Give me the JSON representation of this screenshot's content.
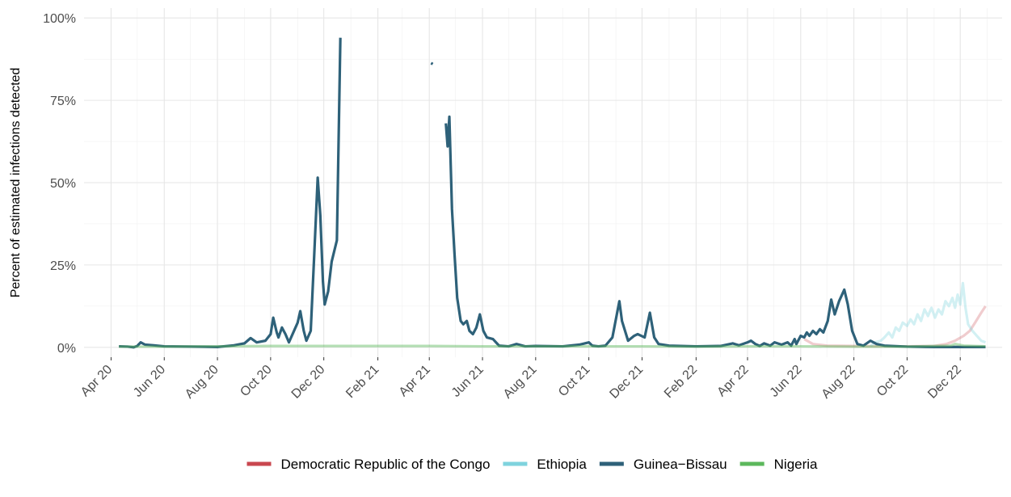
{
  "chart_data": {
    "type": "line",
    "title": "",
    "xlabel": "",
    "ylabel": "Percent of estimated infections detected",
    "y_tick_labels": [
      "0%",
      "25%",
      "50%",
      "75%",
      "100%"
    ],
    "y_ticks": [
      0,
      25,
      50,
      75,
      100
    ],
    "ylim": [
      -3,
      103
    ],
    "xlim": [
      "2020-03-01",
      "2023-01-18"
    ],
    "x_ticks": [
      "2020-04-01",
      "2020-06-01",
      "2020-08-01",
      "2020-10-01",
      "2020-12-01",
      "2021-02-01",
      "2021-04-01",
      "2021-06-01",
      "2021-08-01",
      "2021-10-01",
      "2021-12-01",
      "2022-02-01",
      "2022-04-01",
      "2022-06-01",
      "2022-08-01",
      "2022-10-01",
      "2022-12-01"
    ],
    "x_tick_labels": [
      "Apr 20",
      "Jun 20",
      "Aug 20",
      "Oct 20",
      "Dec 20",
      "Feb 21",
      "Apr 21",
      "Jun 21",
      "Aug 21",
      "Oct 21",
      "Dec 21",
      "Feb 22",
      "Apr 22",
      "Jun 22",
      "Aug 22",
      "Oct 22",
      "Dec 22"
    ],
    "grid": true,
    "legend_position": "bottom",
    "series": [
      {
        "name": "Democratic Republic of the Congo",
        "color": "#c9474f",
        "opacity": 0.28,
        "points": [
          [
            "2022-06-05",
            2.5
          ],
          [
            "2022-06-15",
            1.0
          ],
          [
            "2022-07-01",
            0.5
          ],
          [
            "2022-08-01",
            0.4
          ],
          [
            "2022-09-01",
            0.3
          ],
          [
            "2022-10-01",
            0.3
          ],
          [
            "2022-11-01",
            0.4
          ],
          [
            "2022-11-15",
            1.0
          ],
          [
            "2022-11-25",
            2.0
          ],
          [
            "2022-12-05",
            3.5
          ],
          [
            "2022-12-12",
            5.0
          ],
          [
            "2022-12-18",
            7.5
          ],
          [
            "2022-12-25",
            10.5
          ],
          [
            "2022-12-30",
            12.5
          ]
        ]
      },
      {
        "name": "Ethiopia",
        "color": "#7fd3de",
        "opacity": 0.35,
        "points": [
          [
            "2022-08-20",
            0.3
          ],
          [
            "2022-08-25",
            1.5
          ],
          [
            "2022-09-01",
            2.0
          ],
          [
            "2022-09-05",
            3.0
          ],
          [
            "2022-09-10",
            4.5
          ],
          [
            "2022-09-14",
            3.0
          ],
          [
            "2022-09-18",
            6.0
          ],
          [
            "2022-09-22",
            5.0
          ],
          [
            "2022-09-26",
            7.5
          ],
          [
            "2022-10-01",
            6.5
          ],
          [
            "2022-10-05",
            8.5
          ],
          [
            "2022-10-09",
            7.0
          ],
          [
            "2022-10-13",
            10.0
          ],
          [
            "2022-10-17",
            8.0
          ],
          [
            "2022-10-21",
            11.5
          ],
          [
            "2022-10-25",
            9.5
          ],
          [
            "2022-10-29",
            12.0
          ],
          [
            "2022-11-02",
            9.0
          ],
          [
            "2022-11-06",
            11.5
          ],
          [
            "2022-11-10",
            10.0
          ],
          [
            "2022-11-14",
            14.0
          ],
          [
            "2022-11-18",
            12.5
          ],
          [
            "2022-11-22",
            15.0
          ],
          [
            "2022-11-25",
            12.0
          ],
          [
            "2022-11-28",
            16.0
          ],
          [
            "2022-12-01",
            13.0
          ],
          [
            "2022-12-04",
            19.5
          ],
          [
            "2022-12-07",
            12.0
          ],
          [
            "2022-12-10",
            7.0
          ],
          [
            "2022-12-15",
            5.0
          ],
          [
            "2022-12-20",
            3.5
          ],
          [
            "2022-12-25",
            2.0
          ],
          [
            "2022-12-30",
            1.5
          ]
        ]
      },
      {
        "name": "Guinea−Bissau",
        "color": "#2e6179",
        "opacity": 1,
        "segments": [
          [
            [
              "2020-04-10",
              0.3
            ],
            [
              "2020-04-20",
              0.2
            ],
            [
              "2020-04-27",
              0.0
            ],
            [
              "2020-05-01",
              0.4
            ],
            [
              "2020-05-05",
              1.5
            ],
            [
              "2020-05-10",
              0.8
            ],
            [
              "2020-05-20",
              0.6
            ],
            [
              "2020-06-01",
              0.3
            ],
            [
              "2020-07-01",
              0.2
            ],
            [
              "2020-08-01",
              0.1
            ],
            [
              "2020-08-20",
              0.6
            ],
            [
              "2020-09-01",
              1.2
            ],
            [
              "2020-09-08",
              2.8
            ],
            [
              "2020-09-15",
              1.5
            ],
            [
              "2020-09-25",
              2.0
            ],
            [
              "2020-10-01",
              4.0
            ],
            [
              "2020-10-04",
              9.0
            ],
            [
              "2020-10-08",
              4.5
            ],
            [
              "2020-10-10",
              3.0
            ],
            [
              "2020-10-14",
              6.0
            ],
            [
              "2020-10-18",
              4.0
            ],
            [
              "2020-10-22",
              1.5
            ],
            [
              "2020-10-27",
              4.5
            ],
            [
              "2020-11-01",
              7.5
            ],
            [
              "2020-11-04",
              11.0
            ],
            [
              "2020-11-08",
              5.0
            ],
            [
              "2020-11-11",
              2.0
            ],
            [
              "2020-11-16",
              5.0
            ],
            [
              "2020-11-20",
              28.0
            ],
            [
              "2020-11-24",
              51.5
            ],
            [
              "2020-11-27",
              40.0
            ],
            [
              "2020-11-30",
              20.0
            ],
            [
              "2020-12-02",
              13.0
            ],
            [
              "2020-12-06",
              17.0
            ],
            [
              "2020-12-10",
              26.0
            ],
            [
              "2020-12-16",
              32.5
            ],
            [
              "2020-12-20",
              94.0
            ]
          ],
          [
            [
              "2021-04-03",
              86.3
            ],
            [
              "2021-04-05",
              86.0
            ]
          ],
          [
            [
              "2021-04-20",
              68.0
            ],
            [
              "2021-04-22",
              61.0
            ],
            [
              "2021-04-24",
              70.0
            ],
            [
              "2021-04-27",
              42.0
            ],
            [
              "2021-04-30",
              28.0
            ],
            [
              "2021-05-03",
              15.0
            ],
            [
              "2021-05-07",
              8.0
            ],
            [
              "2021-05-10",
              7.0
            ],
            [
              "2021-05-14",
              8.0
            ],
            [
              "2021-05-17",
              5.0
            ],
            [
              "2021-05-21",
              4.0
            ],
            [
              "2021-05-25",
              6.0
            ],
            [
              "2021-05-29",
              10.0
            ],
            [
              "2021-06-02",
              5.0
            ],
            [
              "2021-06-06",
              3.0
            ],
            [
              "2021-06-13",
              2.5
            ],
            [
              "2021-06-20",
              0.5
            ],
            [
              "2021-07-01",
              0.3
            ],
            [
              "2021-07-10",
              1.0
            ],
            [
              "2021-07-20",
              0.3
            ],
            [
              "2021-08-01",
              0.4
            ],
            [
              "2021-09-01",
              0.3
            ],
            [
              "2021-09-20",
              0.8
            ],
            [
              "2021-10-01",
              1.5
            ],
            [
              "2021-10-05",
              0.5
            ],
            [
              "2021-10-12",
              0.3
            ],
            [
              "2021-10-20",
              0.5
            ],
            [
              "2021-10-28",
              3.0
            ],
            [
              "2021-11-05",
              14.0
            ],
            [
              "2021-11-08",
              8.0
            ],
            [
              "2021-11-15",
              2.0
            ],
            [
              "2021-11-22",
              3.5
            ],
            [
              "2021-11-26",
              4.0
            ],
            [
              "2021-12-04",
              3.0
            ],
            [
              "2021-12-10",
              10.5
            ],
            [
              "2021-12-15",
              3.0
            ],
            [
              "2021-12-20",
              1.0
            ],
            [
              "2022-01-01",
              0.5
            ],
            [
              "2022-02-01",
              0.3
            ],
            [
              "2022-03-01",
              0.4
            ],
            [
              "2022-03-15",
              1.2
            ],
            [
              "2022-03-22",
              0.6
            ],
            [
              "2022-04-01",
              1.5
            ],
            [
              "2022-04-05",
              2.0
            ],
            [
              "2022-04-10",
              1.0
            ],
            [
              "2022-04-15",
              0.4
            ],
            [
              "2022-04-20",
              1.2
            ],
            [
              "2022-04-27",
              0.5
            ],
            [
              "2022-05-02",
              1.5
            ],
            [
              "2022-05-10",
              0.8
            ],
            [
              "2022-05-17",
              1.5
            ],
            [
              "2022-05-21",
              0.5
            ],
            [
              "2022-05-25",
              2.5
            ],
            [
              "2022-05-27",
              1.0
            ],
            [
              "2022-06-01",
              3.5
            ],
            [
              "2022-06-05",
              3.0
            ],
            [
              "2022-06-08",
              4.5
            ],
            [
              "2022-06-11",
              3.5
            ],
            [
              "2022-06-15",
              5.0
            ],
            [
              "2022-06-19",
              4.0
            ],
            [
              "2022-06-23",
              5.5
            ],
            [
              "2022-06-27",
              4.5
            ],
            [
              "2022-07-02",
              8.0
            ],
            [
              "2022-07-06",
              14.5
            ],
            [
              "2022-07-10",
              10.0
            ],
            [
              "2022-07-15",
              14.0
            ],
            [
              "2022-07-21",
              17.5
            ],
            [
              "2022-07-25",
              13.0
            ],
            [
              "2022-07-30",
              5.0
            ],
            [
              "2022-08-05",
              1.0
            ],
            [
              "2022-08-12",
              0.5
            ],
            [
              "2022-08-20",
              2.0
            ],
            [
              "2022-08-27",
              1.0
            ],
            [
              "2022-09-05",
              0.5
            ],
            [
              "2022-10-01",
              0.2
            ],
            [
              "2022-11-01",
              0.1
            ],
            [
              "2022-12-01",
              0.1
            ],
            [
              "2022-12-30",
              0.1
            ]
          ]
        ]
      },
      {
        "name": "Nigeria",
        "color": "#5cb85c",
        "opacity": 0.45,
        "points": [
          [
            "2020-04-10",
            0.2
          ],
          [
            "2020-06-01",
            0.2
          ],
          [
            "2020-08-01",
            0.3
          ],
          [
            "2020-10-01",
            0.4
          ],
          [
            "2020-12-01",
            0.4
          ],
          [
            "2021-02-01",
            0.4
          ],
          [
            "2021-04-01",
            0.4
          ],
          [
            "2021-06-01",
            0.3
          ],
          [
            "2021-08-01",
            0.3
          ],
          [
            "2021-10-01",
            0.3
          ],
          [
            "2021-12-01",
            0.3
          ],
          [
            "2022-02-01",
            0.2
          ],
          [
            "2022-04-01",
            0.3
          ],
          [
            "2022-06-01",
            0.3
          ],
          [
            "2022-08-01",
            0.2
          ],
          [
            "2022-10-01",
            0.2
          ],
          [
            "2022-11-20",
            0.5
          ],
          [
            "2022-11-25",
            1.0
          ],
          [
            "2022-12-05",
            0.5
          ],
          [
            "2022-12-30",
            0.3
          ]
        ]
      }
    ]
  },
  "legend": {
    "items": [
      {
        "label": "Democratic Republic of the Congo",
        "color": "#c9474f"
      },
      {
        "label": "Ethiopia",
        "color": "#7fd3de"
      },
      {
        "label": "Guinea−Bissau",
        "color": "#2e6179"
      },
      {
        "label": "Nigeria",
        "color": "#5cb85c"
      }
    ]
  }
}
